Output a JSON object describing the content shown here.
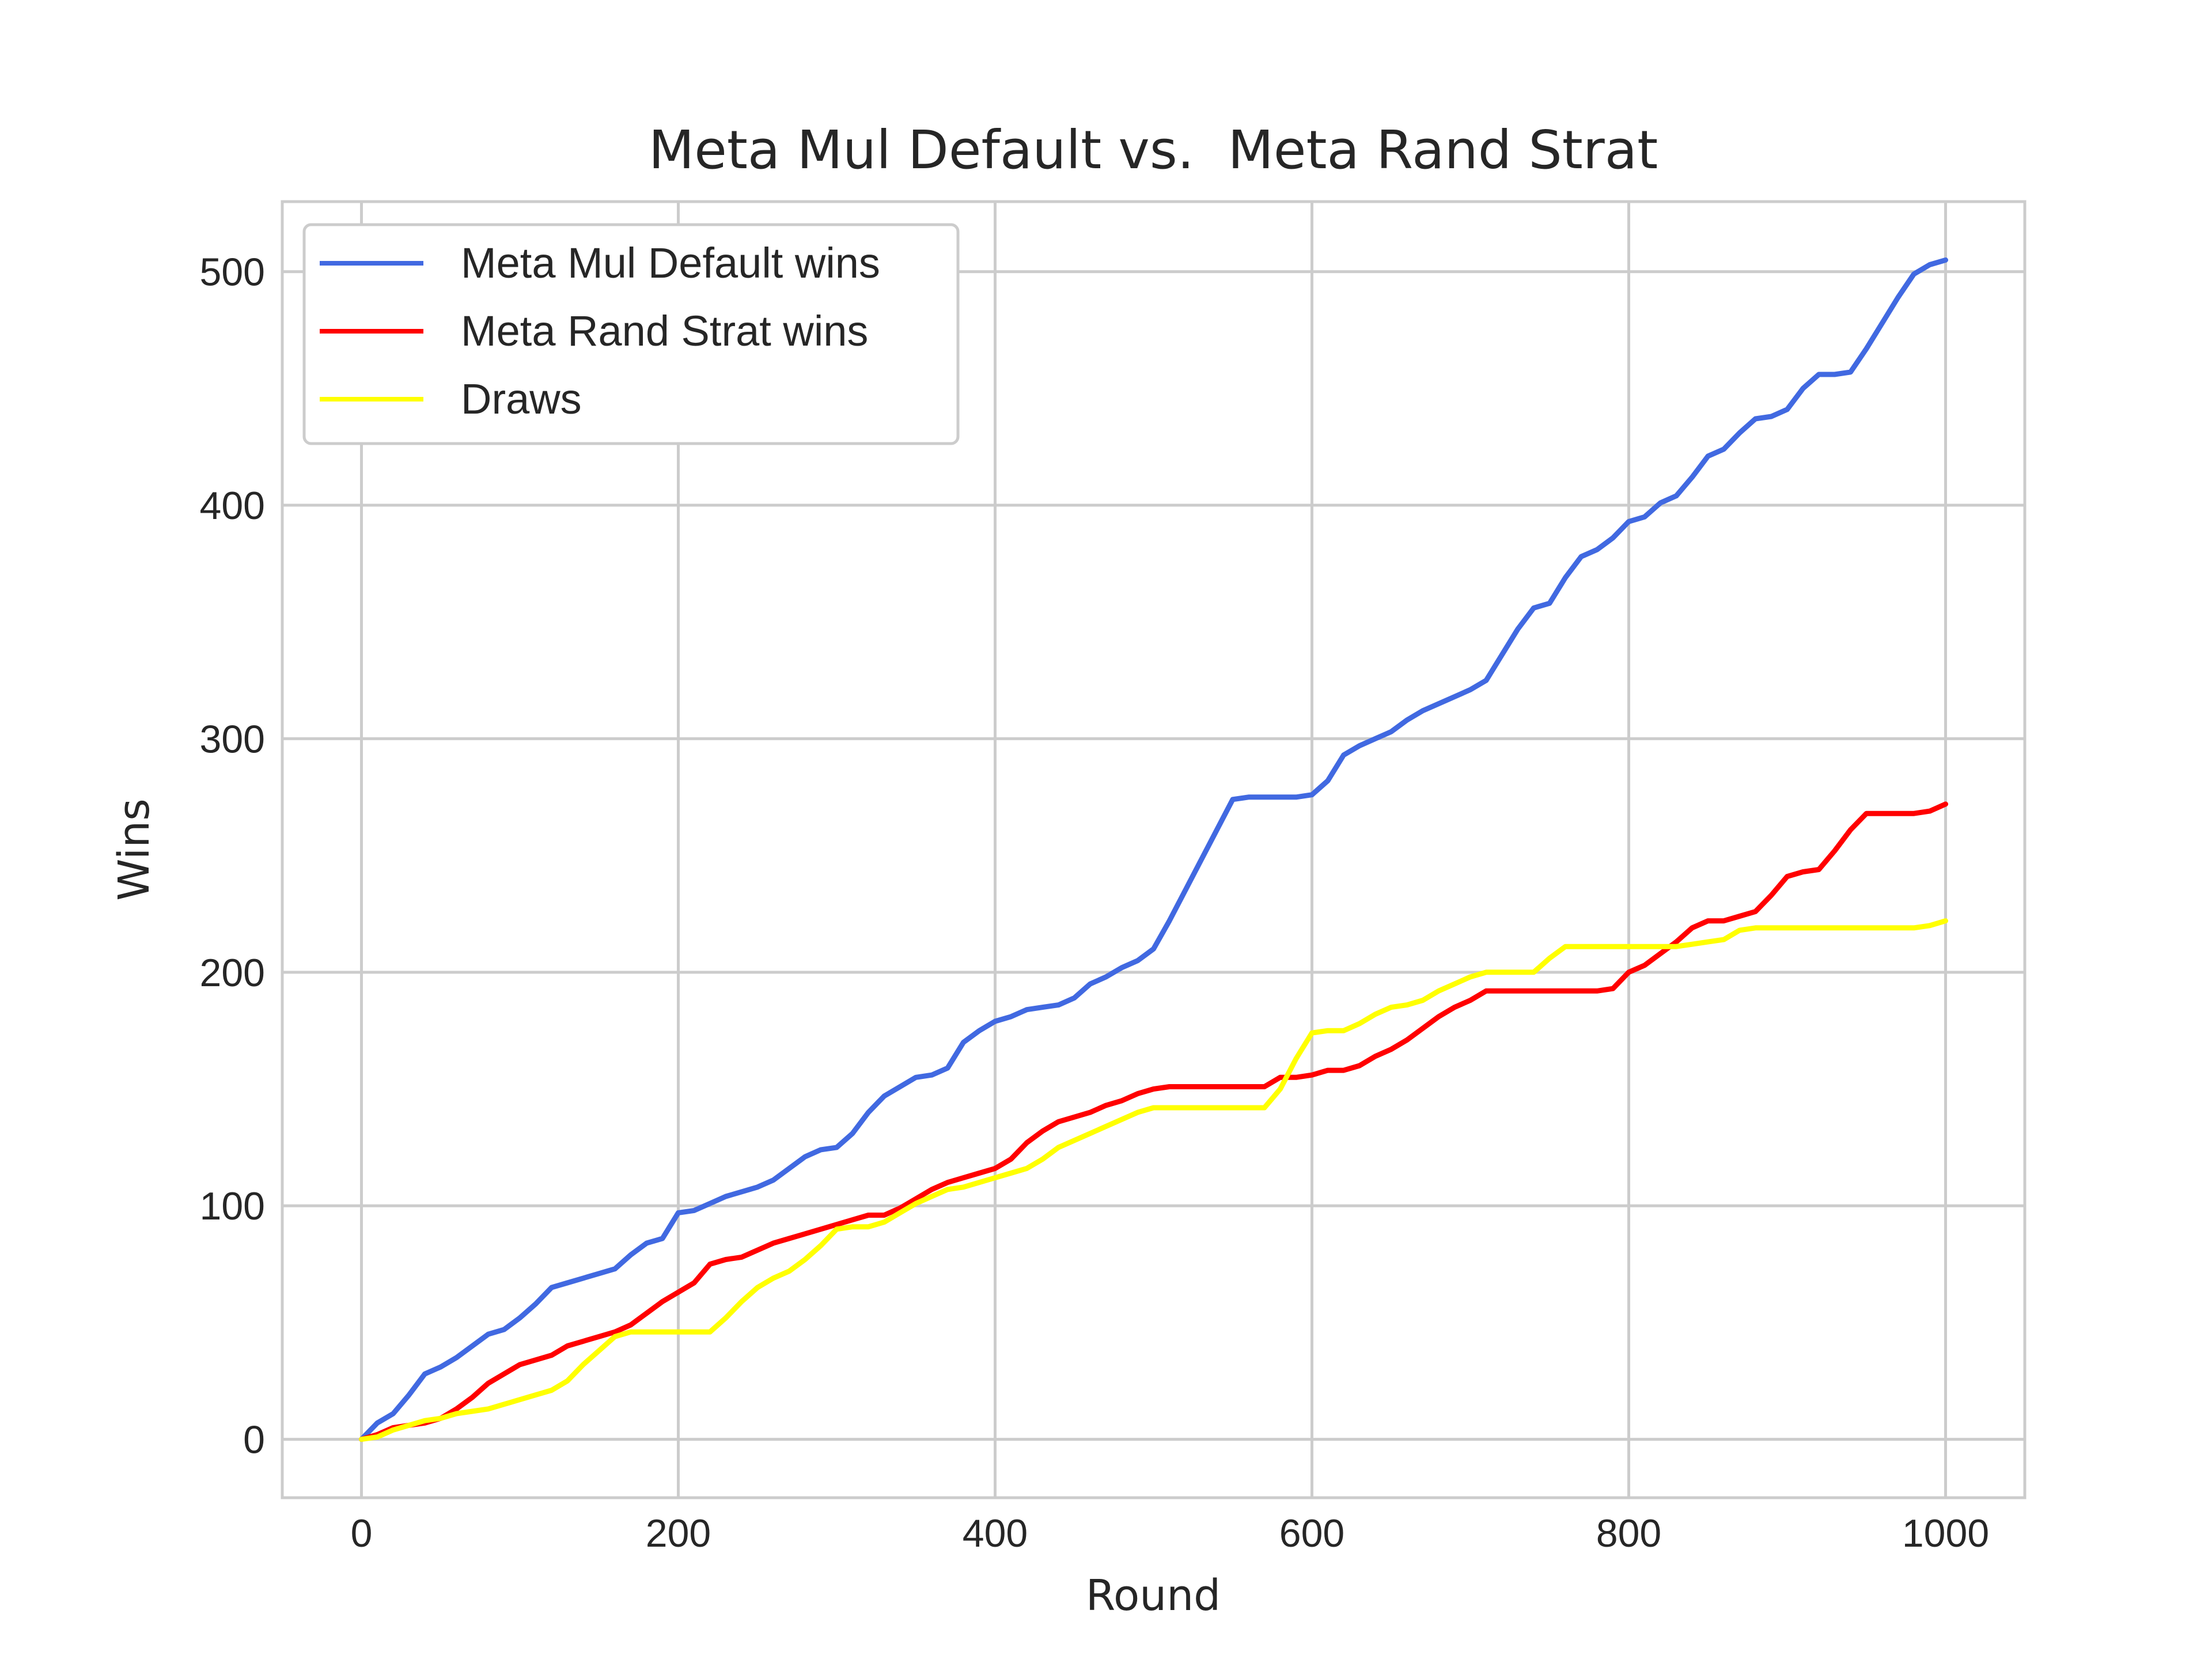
{
  "chart_data": {
    "type": "line",
    "title": "Meta Mul Default vs.  Meta Rand Strat",
    "xlabel": "Round",
    "ylabel": "Wins",
    "xlim": [
      -50,
      1050
    ],
    "ylim": [
      -25,
      530
    ],
    "xticks": [
      0,
      200,
      400,
      600,
      800,
      1000
    ],
    "yticks": [
      0,
      100,
      200,
      300,
      400,
      500
    ],
    "grid": true,
    "legend_position": "top-left",
    "series": [
      {
        "name": "Meta Mul Default wins",
        "color": "#4169e1",
        "x": [
          0,
          10,
          20,
          30,
          40,
          50,
          60,
          70,
          80,
          90,
          100,
          110,
          120,
          130,
          140,
          150,
          160,
          170,
          180,
          190,
          200,
          210,
          220,
          230,
          240,
          250,
          260,
          270,
          280,
          290,
          300,
          310,
          320,
          330,
          340,
          350,
          360,
          370,
          380,
          390,
          400,
          410,
          420,
          430,
          440,
          450,
          460,
          470,
          480,
          490,
          500,
          510,
          520,
          530,
          540,
          550,
          560,
          570,
          580,
          590,
          600,
          610,
          620,
          630,
          640,
          650,
          660,
          670,
          680,
          690,
          700,
          710,
          720,
          730,
          740,
          750,
          760,
          770,
          780,
          790,
          800,
          810,
          820,
          830,
          840,
          850,
          860,
          870,
          880,
          890,
          900,
          910,
          920,
          930,
          940,
          950,
          960,
          970,
          980,
          990,
          1000
        ],
        "values": [
          0,
          7,
          11,
          19,
          28,
          31,
          35,
          40,
          45,
          47,
          52,
          58,
          65,
          67,
          69,
          71,
          73,
          79,
          84,
          86,
          97,
          98,
          101,
          104,
          106,
          108,
          111,
          116,
          121,
          124,
          125,
          131,
          140,
          147,
          151,
          155,
          156,
          159,
          170,
          175,
          179,
          181,
          184,
          185,
          186,
          189,
          195,
          198,
          202,
          205,
          210,
          222,
          235,
          248,
          261,
          274,
          275,
          275,
          275,
          275,
          276,
          282,
          293,
          297,
          300,
          303,
          308,
          312,
          315,
          318,
          321,
          325,
          336,
          347,
          356,
          358,
          369,
          378,
          381,
          386,
          393,
          395,
          401,
          404,
          412,
          421,
          424,
          431,
          437,
          438,
          441,
          450,
          456,
          456,
          457,
          467,
          478,
          489,
          499,
          503,
          505
        ]
      },
      {
        "name": "Meta Rand Strat wins",
        "color": "#ff0000",
        "x": [
          0,
          10,
          20,
          30,
          40,
          50,
          60,
          70,
          80,
          90,
          100,
          110,
          120,
          130,
          140,
          150,
          160,
          170,
          180,
          190,
          200,
          210,
          220,
          230,
          240,
          250,
          260,
          270,
          280,
          290,
          300,
          310,
          320,
          330,
          340,
          350,
          360,
          370,
          380,
          390,
          400,
          410,
          420,
          430,
          440,
          450,
          460,
          470,
          480,
          490,
          500,
          510,
          520,
          530,
          540,
          550,
          560,
          570,
          580,
          590,
          600,
          610,
          620,
          630,
          640,
          650,
          660,
          670,
          680,
          690,
          700,
          710,
          720,
          730,
          740,
          750,
          760,
          770,
          780,
          790,
          800,
          810,
          820,
          830,
          840,
          850,
          860,
          870,
          880,
          890,
          900,
          910,
          920,
          930,
          940,
          950,
          960,
          970,
          980,
          990,
          1000
        ],
        "values": [
          0,
          2,
          5,
          6,
          7,
          9,
          13,
          18,
          24,
          28,
          32,
          34,
          36,
          40,
          42,
          44,
          46,
          49,
          54,
          59,
          63,
          67,
          75,
          77,
          78,
          81,
          84,
          86,
          88,
          90,
          92,
          94,
          96,
          96,
          99,
          103,
          107,
          110,
          112,
          114,
          116,
          120,
          127,
          132,
          136,
          138,
          140,
          143,
          145,
          148,
          150,
          151,
          151,
          151,
          151,
          151,
          151,
          151,
          155,
          155,
          156,
          158,
          158,
          160,
          164,
          167,
          171,
          176,
          181,
          185,
          188,
          192,
          192,
          192,
          192,
          192,
          192,
          192,
          192,
          193,
          200,
          203,
          208,
          213,
          219,
          222,
          222,
          224,
          226,
          233,
          241,
          243,
          244,
          252,
          261,
          268,
          268,
          268,
          268,
          269,
          272
        ]
      },
      {
        "name": "Draws",
        "color": "#ffff00",
        "x": [
          0,
          10,
          20,
          30,
          40,
          50,
          60,
          70,
          80,
          90,
          100,
          110,
          120,
          130,
          140,
          150,
          160,
          170,
          180,
          190,
          200,
          210,
          220,
          230,
          240,
          250,
          260,
          270,
          280,
          290,
          300,
          310,
          320,
          330,
          340,
          350,
          360,
          370,
          380,
          390,
          400,
          410,
          420,
          430,
          440,
          450,
          460,
          470,
          480,
          490,
          500,
          510,
          520,
          530,
          540,
          550,
          560,
          570,
          580,
          590,
          600,
          610,
          620,
          630,
          640,
          650,
          660,
          670,
          680,
          690,
          700,
          710,
          720,
          730,
          740,
          750,
          760,
          770,
          780,
          790,
          800,
          810,
          820,
          830,
          840,
          850,
          860,
          870,
          880,
          890,
          900,
          910,
          920,
          930,
          940,
          950,
          960,
          970,
          980,
          990,
          1000
        ],
        "values": [
          0,
          1,
          4,
          6,
          8,
          9,
          11,
          12,
          13,
          15,
          17,
          19,
          21,
          25,
          32,
          38,
          44,
          46,
          46,
          46,
          46,
          46,
          46,
          52,
          59,
          65,
          69,
          72,
          77,
          83,
          90,
          91,
          91,
          93,
          97,
          101,
          104,
          107,
          108,
          110,
          112,
          114,
          116,
          120,
          125,
          128,
          131,
          134,
          137,
          140,
          142,
          142,
          142,
          142,
          142,
          142,
          142,
          142,
          150,
          163,
          174,
          175,
          175,
          178,
          182,
          185,
          186,
          188,
          192,
          195,
          198,
          200,
          200,
          200,
          200,
          206,
          211,
          211,
          211,
          211,
          211,
          211,
          211,
          211,
          212,
          213,
          214,
          218,
          219,
          219,
          219,
          219,
          219,
          219,
          219,
          219,
          219,
          219,
          219,
          220,
          222
        ]
      }
    ]
  }
}
